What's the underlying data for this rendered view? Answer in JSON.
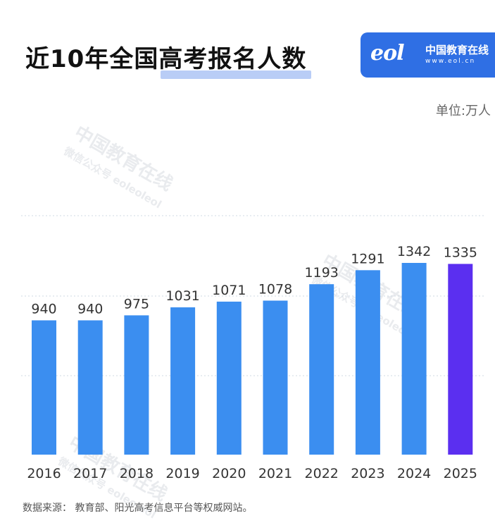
{
  "title": "近10年全国高考报名人数",
  "logo": {
    "mark": "eol",
    "name": "中国教育在线",
    "url": "www.eol.cn"
  },
  "unit_label": "单位:万人",
  "watermark": {
    "name": "中国教育在线",
    "account": "微信公众号 eoleoleol"
  },
  "source_note": "数据来源： 教育部、阳光高考信息平台等权威网站。",
  "colors": {
    "bar": "#3b8ef0",
    "bar_highlight": "#5b2ff0",
    "grid": "#cfd8e3",
    "label": "#333333"
  },
  "chart_data": {
    "type": "bar",
    "title": "近10年全国高考报名人数",
    "categories": [
      "2016",
      "2017",
      "2018",
      "2019",
      "2020",
      "2021",
      "2022",
      "2023",
      "2024",
      "2025"
    ],
    "values": [
      940,
      940,
      975,
      1031,
      1071,
      1078,
      1193,
      1291,
      1342,
      1335
    ],
    "value_labels": [
      "940",
      "940",
      "975",
      "1031",
      "1071",
      "1078",
      "1193",
      "1291",
      "1342",
      "1335"
    ],
    "highlight_index": 9,
    "unit": "单位:万人",
    "grid": true,
    "grid_style": "dotted"
  }
}
